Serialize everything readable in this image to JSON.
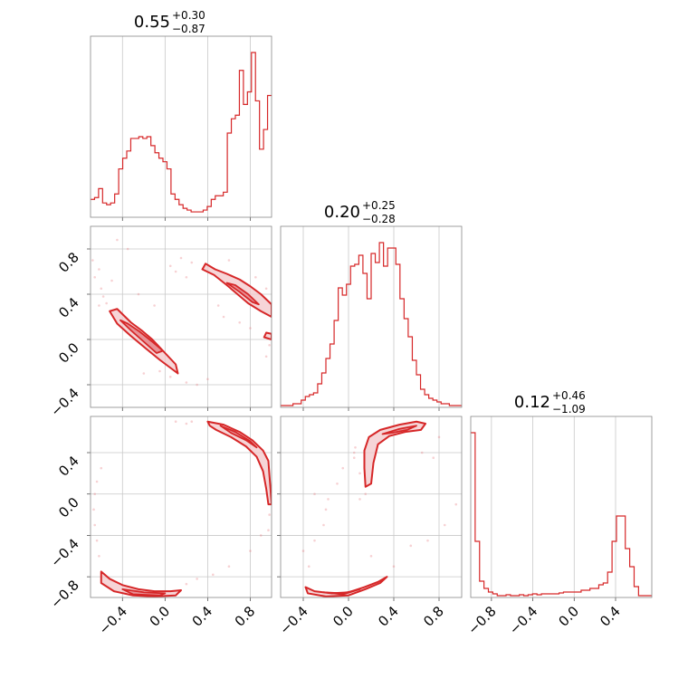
{
  "chart_data": [
    {
      "type": "histogram",
      "panel": "p0",
      "title": {
        "median": "0.55",
        "plus": "+0.30",
        "minus": "−0.87"
      },
      "x_range": [
        -0.7,
        1.0
      ],
      "grid_ticks": [
        -0.4,
        0.0,
        0.4,
        0.8
      ],
      "bin_values": [
        0.1,
        0.11,
        0.16,
        0.08,
        0.07,
        0.08,
        0.13,
        0.27,
        0.33,
        0.37,
        0.44,
        0.44,
        0.45,
        0.44,
        0.45,
        0.4,
        0.36,
        0.33,
        0.31,
        0.27,
        0.13,
        0.1,
        0.07,
        0.05,
        0.04,
        0.03,
        0.03,
        0.03,
        0.04,
        0.06,
        0.1,
        0.12,
        0.12,
        0.14,
        0.47,
        0.55,
        0.57,
        0.82,
        0.63,
        0.7,
        0.92,
        0.65,
        0.38,
        0.49,
        0.68
      ]
    },
    {
      "type": "histogram",
      "panel": "p1",
      "title": {
        "median": "0.20",
        "plus": "+0.25",
        "minus": "−0.28"
      },
      "x_range": [
        -0.6,
        1.0
      ],
      "grid_ticks": [
        -0.4,
        0.0,
        0.4,
        0.8
      ],
      "bin_values": [
        0.01,
        0.01,
        0.01,
        0.02,
        0.02,
        0.04,
        0.06,
        0.07,
        0.08,
        0.13,
        0.19,
        0.27,
        0.35,
        0.48,
        0.66,
        0.62,
        0.68,
        0.78,
        0.79,
        0.84,
        0.74,
        0.6,
        0.85,
        0.8,
        0.91,
        0.78,
        0.88,
        0.88,
        0.79,
        0.6,
        0.49,
        0.39,
        0.26,
        0.18,
        0.1,
        0.07,
        0.05,
        0.04,
        0.03,
        0.02,
        0.02,
        0.01,
        0.01,
        0.01
      ]
    },
    {
      "type": "histogram",
      "panel": "p2",
      "title": {
        "median": "0.12",
        "plus": "+0.46",
        "minus": "−1.09"
      },
      "x_range": [
        -1.0,
        0.75
      ],
      "grid_ticks": [
        -0.8,
        -0.4,
        0.0,
        0.4
      ],
      "bin_values": [
        0.91,
        0.31,
        0.09,
        0.05,
        0.03,
        0.02,
        0.01,
        0.01,
        0.015,
        0.01,
        0.01,
        0.015,
        0.01,
        0.015,
        0.02,
        0.015,
        0.02,
        0.02,
        0.02,
        0.02,
        0.025,
        0.03,
        0.03,
        0.03,
        0.03,
        0.04,
        0.04,
        0.05,
        0.05,
        0.07,
        0.08,
        0.14,
        0.31,
        0.45,
        0.45,
        0.27,
        0.17,
        0.06,
        0.01,
        0.01,
        0.01
      ]
    },
    {
      "type": "contour2d",
      "panel": "p3",
      "x_range": [
        -0.7,
        1.0
      ],
      "y_range": [
        -0.6,
        1.0
      ],
      "x_grid_ticks": [
        -0.4,
        0.0,
        0.4,
        0.8
      ],
      "y_ticks": [
        -0.4,
        0.0,
        0.4,
        0.8
      ],
      "y_tick_labels": [
        "−0.4",
        "0.0",
        "0.4",
        "0.8"
      ],
      "outer_regions": [
        [
          [
            -0.52,
            0.25
          ],
          [
            -0.45,
            0.14
          ],
          [
            -0.32,
            0.03
          ],
          [
            -0.18,
            -0.08
          ],
          [
            -0.05,
            -0.18
          ],
          [
            0.12,
            -0.3
          ],
          [
            0.1,
            -0.22
          ],
          [
            -0.02,
            -0.1
          ],
          [
            -0.12,
            0.0
          ],
          [
            -0.22,
            0.08
          ],
          [
            -0.32,
            0.15
          ],
          [
            -0.45,
            0.27
          ]
        ],
        [
          [
            0.35,
            0.62
          ],
          [
            0.46,
            0.57
          ],
          [
            0.58,
            0.48
          ],
          [
            0.68,
            0.4
          ],
          [
            0.78,
            0.32
          ],
          [
            0.9,
            0.25
          ],
          [
            1.0,
            0.2
          ],
          [
            1.0,
            0.31
          ],
          [
            0.9,
            0.4
          ],
          [
            0.8,
            0.47
          ],
          [
            0.7,
            0.53
          ],
          [
            0.58,
            0.58
          ],
          [
            0.47,
            0.62
          ],
          [
            0.38,
            0.67
          ]
        ],
        [
          [
            0.93,
            0.02
          ],
          [
            1.0,
            0.0
          ],
          [
            1.0,
            0.05
          ],
          [
            0.95,
            0.06
          ]
        ]
      ],
      "inner_regions": [
        [
          [
            -0.42,
            0.17
          ],
          [
            -0.32,
            0.08
          ],
          [
            -0.2,
            -0.02
          ],
          [
            -0.08,
            -0.12
          ],
          [
            -0.02,
            -0.1
          ],
          [
            -0.12,
            -0.02
          ],
          [
            -0.24,
            0.07
          ],
          [
            -0.35,
            0.14
          ]
        ],
        [
          [
            0.58,
            0.5
          ],
          [
            0.7,
            0.42
          ],
          [
            0.82,
            0.33
          ],
          [
            0.88,
            0.31
          ],
          [
            0.78,
            0.4
          ],
          [
            0.66,
            0.48
          ]
        ]
      ],
      "scatter": [
        [
          -0.62,
          0.62
        ],
        [
          -0.66,
          0.55
        ],
        [
          -0.6,
          0.45
        ],
        [
          -0.58,
          0.38
        ],
        [
          -0.55,
          0.32
        ],
        [
          -0.68,
          0.7
        ],
        [
          -0.5,
          0.52
        ],
        [
          -0.45,
          0.88
        ],
        [
          -0.35,
          0.8
        ],
        [
          -0.62,
          0.3
        ],
        [
          -0.2,
          -0.3
        ],
        [
          -0.05,
          -0.28
        ],
        [
          0.05,
          -0.33
        ],
        [
          0.2,
          -0.38
        ],
        [
          0.3,
          -0.4
        ],
        [
          0.4,
          -0.35
        ],
        [
          0.25,
          0.68
        ],
        [
          0.15,
          0.72
        ],
        [
          0.1,
          0.6
        ],
        [
          0.2,
          0.55
        ],
        [
          0.7,
          0.15
        ],
        [
          0.8,
          0.1
        ],
        [
          0.95,
          -0.15
        ],
        [
          0.98,
          -0.05
        ],
        [
          0.55,
          0.2
        ],
        [
          0.05,
          0.65
        ],
        [
          -0.25,
          0.4
        ],
        [
          -0.1,
          0.3
        ],
        [
          0.6,
          0.7
        ],
        [
          0.85,
          0.55
        ],
        [
          0.95,
          0.45
        ],
        [
          0.5,
          0.3
        ]
      ]
    },
    {
      "type": "contour2d",
      "panel": "p4",
      "x_range": [
        -0.7,
        1.0
      ],
      "y_range": [
        -1.0,
        0.75
      ],
      "x_grid_ticks": [
        -0.4,
        0.0,
        0.4,
        0.8
      ],
      "x_tick_labels": [
        "−0.4",
        "0.0",
        "0.4",
        "0.8"
      ],
      "y_ticks": [
        -0.8,
        -0.4,
        0.0,
        0.4
      ],
      "y_tick_labels": [
        "−0.8",
        "−0.4",
        "0.0",
        "0.4"
      ],
      "outer_regions": [
        [
          [
            0.4,
            0.7
          ],
          [
            0.55,
            0.67
          ],
          [
            0.7,
            0.6
          ],
          [
            0.82,
            0.52
          ],
          [
            0.92,
            0.42
          ],
          [
            0.97,
            0.32
          ],
          [
            0.98,
            0.18
          ],
          [
            0.99,
            0.05
          ],
          [
            1.0,
            -0.1
          ],
          [
            0.97,
            -0.1
          ],
          [
            0.95,
            0.05
          ],
          [
            0.92,
            0.22
          ],
          [
            0.86,
            0.36
          ],
          [
            0.76,
            0.46
          ],
          [
            0.62,
            0.55
          ],
          [
            0.48,
            0.62
          ],
          [
            0.42,
            0.66
          ]
        ],
        [
          [
            -0.6,
            -0.75
          ],
          [
            -0.52,
            -0.82
          ],
          [
            -0.4,
            -0.88
          ],
          [
            -0.25,
            -0.92
          ],
          [
            -0.1,
            -0.94
          ],
          [
            0.05,
            -0.94
          ],
          [
            0.15,
            -0.93
          ],
          [
            0.1,
            -0.98
          ],
          [
            -0.1,
            -0.99
          ],
          [
            -0.3,
            -0.98
          ],
          [
            -0.48,
            -0.94
          ],
          [
            -0.6,
            -0.86
          ]
        ]
      ],
      "inner_regions": [
        [
          [
            0.52,
            0.66
          ],
          [
            0.66,
            0.6
          ],
          [
            0.8,
            0.51
          ],
          [
            0.86,
            0.45
          ],
          [
            0.76,
            0.52
          ],
          [
            0.62,
            0.59
          ]
        ],
        [
          [
            -0.4,
            -0.92
          ],
          [
            -0.2,
            -0.95
          ],
          [
            0.0,
            -0.96
          ],
          [
            -0.05,
            -0.98
          ],
          [
            -0.3,
            -0.97
          ]
        ]
      ],
      "scatter": [
        [
          -0.62,
          -0.6
        ],
        [
          -0.64,
          -0.45
        ],
        [
          -0.66,
          -0.3
        ],
        [
          -0.67,
          -0.15
        ],
        [
          -0.66,
          0.0
        ],
        [
          -0.64,
          0.12
        ],
        [
          -0.6,
          0.25
        ],
        [
          0.25,
          0.7
        ],
        [
          0.2,
          0.68
        ],
        [
          0.1,
          0.7
        ],
        [
          0.98,
          -0.2
        ],
        [
          0.97,
          -0.35
        ],
        [
          0.9,
          -0.4
        ],
        [
          0.8,
          -0.55
        ],
        [
          0.6,
          -0.7
        ],
        [
          0.45,
          -0.78
        ],
        [
          0.3,
          -0.82
        ],
        [
          0.2,
          -0.87
        ]
      ]
    },
    {
      "type": "contour2d",
      "panel": "p5",
      "x_range": [
        -0.6,
        1.0
      ],
      "y_range": [
        -1.0,
        0.75
      ],
      "x_grid_ticks": [
        -0.4,
        0.0,
        0.4,
        0.8
      ],
      "x_tick_labels": [
        "−0.4",
        "0.0",
        "0.4",
        "0.8"
      ],
      "y_grid_ticks": [
        -0.8,
        -0.4,
        0.0,
        0.4
      ],
      "outer_regions": [
        [
          [
            0.14,
            0.42
          ],
          [
            0.18,
            0.55
          ],
          [
            0.28,
            0.62
          ],
          [
            0.45,
            0.67
          ],
          [
            0.6,
            0.7
          ],
          [
            0.68,
            0.68
          ],
          [
            0.64,
            0.62
          ],
          [
            0.5,
            0.6
          ],
          [
            0.36,
            0.56
          ],
          [
            0.26,
            0.48
          ],
          [
            0.22,
            0.3
          ],
          [
            0.2,
            0.1
          ],
          [
            0.15,
            0.07
          ],
          [
            0.14,
            0.25
          ]
        ],
        [
          [
            -0.38,
            -0.9
          ],
          [
            -0.3,
            -0.94
          ],
          [
            -0.15,
            -0.96
          ],
          [
            0.0,
            -0.95
          ],
          [
            0.14,
            -0.9
          ],
          [
            0.26,
            -0.85
          ],
          [
            0.34,
            -0.8
          ],
          [
            0.28,
            -0.86
          ],
          [
            0.15,
            -0.92
          ],
          [
            0.0,
            -0.98
          ],
          [
            -0.2,
            -0.99
          ],
          [
            -0.36,
            -0.96
          ]
        ]
      ],
      "inner_regions": [
        [
          [
            0.3,
            0.58
          ],
          [
            0.45,
            0.63
          ],
          [
            0.6,
            0.66
          ],
          [
            0.52,
            0.62
          ],
          [
            0.38,
            0.59
          ]
        ],
        [
          [
            -0.22,
            -0.95
          ],
          [
            -0.05,
            -0.96
          ],
          [
            0.1,
            -0.92
          ],
          [
            -0.05,
            -0.97
          ]
        ]
      ],
      "scatter": [
        [
          -0.4,
          -0.55
        ],
        [
          -0.3,
          -0.45
        ],
        [
          -0.22,
          -0.3
        ],
        [
          -0.2,
          -0.15
        ],
        [
          -0.18,
          -0.05
        ],
        [
          -0.1,
          0.1
        ],
        [
          -0.05,
          0.25
        ],
        [
          0.05,
          0.35
        ],
        [
          0.06,
          0.45
        ],
        [
          0.05,
          0.4
        ],
        [
          -0.35,
          -0.7
        ],
        [
          0.55,
          -0.5
        ],
        [
          0.7,
          -0.45
        ],
        [
          0.85,
          -0.3
        ],
        [
          0.95,
          -0.1
        ],
        [
          0.4,
          -0.7
        ],
        [
          0.2,
          -0.6
        ],
        [
          0.75,
          0.35
        ],
        [
          0.8,
          0.55
        ],
        [
          0.65,
          0.4
        ],
        [
          0.1,
          0.2
        ],
        [
          0.15,
          0.0
        ],
        [
          -0.3,
          0.0
        ],
        [
          0.1,
          -0.05
        ]
      ]
    }
  ]
}
